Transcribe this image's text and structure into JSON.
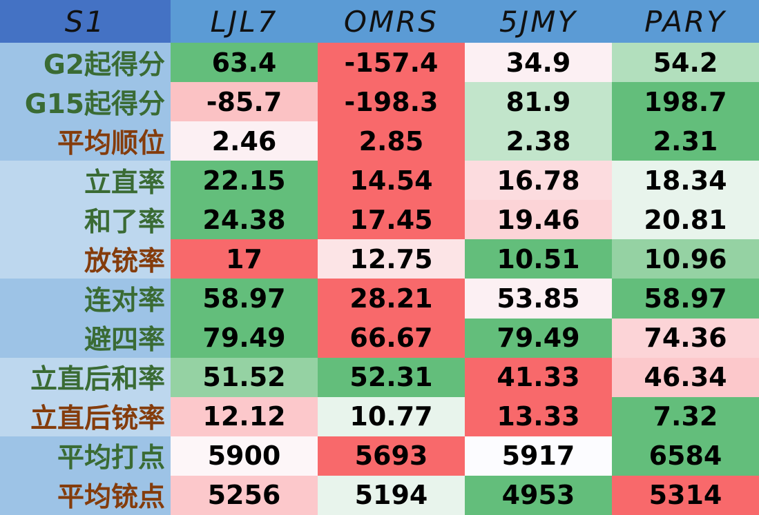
{
  "header": {
    "corner": "S1",
    "columns": [
      "LJL7",
      "OMRS",
      "5JMY",
      "PARY"
    ]
  },
  "colors": {
    "header_bg": "#5b9bd5",
    "corner_bg": "#4472c4",
    "label_bg_a": "#9dc3e6",
    "label_bg_b": "#bdd7ee",
    "label_text_green": "#3a6b34",
    "label_text_brown": "#843c0c"
  },
  "rows": [
    {
      "label": "G2起得分",
      "label_color": "#3a6b34",
      "label_bg": "#9dc3e6",
      "values": [
        "63.4",
        "-157.4",
        "34.9",
        "54.2"
      ],
      "colors": [
        "#63be7b",
        "#f8696b",
        "#fcf0f3",
        "#b2dfbd"
      ]
    },
    {
      "label": "G15起得分",
      "label_color": "#3a6b34",
      "label_bg": "#9dc3e6",
      "values": [
        "-85.7",
        "-198.3",
        "81.9",
        "198.7"
      ],
      "colors": [
        "#fbc2c4",
        "#f8696b",
        "#c2e5cb",
        "#63be7b"
      ]
    },
    {
      "label": "平均顺位",
      "label_color": "#843c0c",
      "label_bg": "#9dc3e6",
      "values": [
        "2.46",
        "2.85",
        "2.38",
        "2.31"
      ],
      "colors": [
        "#fcf0f3",
        "#f8696b",
        "#c2e5cb",
        "#63be7b"
      ]
    },
    {
      "label": "立直率",
      "label_color": "#3a6b34",
      "label_bg": "#bdd7ee",
      "values": [
        "22.15",
        "14.54",
        "16.78",
        "18.34"
      ],
      "colors": [
        "#63be7b",
        "#f8696b",
        "#fcdcdf",
        "#e8f4ec"
      ]
    },
    {
      "label": "和了率",
      "label_color": "#3a6b34",
      "label_bg": "#bdd7ee",
      "values": [
        "24.38",
        "17.45",
        "19.46",
        "20.81"
      ],
      "colors": [
        "#63be7b",
        "#f8696b",
        "#fcd4d7",
        "#e8f4ec"
      ]
    },
    {
      "label": "放铳率",
      "label_color": "#843c0c",
      "label_bg": "#bdd7ee",
      "values": [
        "17",
        "12.75",
        "10.51",
        "10.96"
      ],
      "colors": [
        "#f8696b",
        "#fce4e6",
        "#63be7b",
        "#95d2a3"
      ]
    },
    {
      "label": "连对率",
      "label_color": "#3a6b34",
      "label_bg": "#9dc3e6",
      "values": [
        "58.97",
        "28.21",
        "53.85",
        "58.97"
      ],
      "colors": [
        "#63be7b",
        "#f8696b",
        "#fcf0f3",
        "#63be7b"
      ]
    },
    {
      "label": "避四率",
      "label_color": "#3a6b34",
      "label_bg": "#9dc3e6",
      "values": [
        "79.49",
        "66.67",
        "79.49",
        "74.36"
      ],
      "colors": [
        "#63be7b",
        "#f8696b",
        "#63be7b",
        "#fcd4d7"
      ]
    },
    {
      "label": "立直后和率",
      "label_color": "#3a6b34",
      "label_bg": "#bdd7ee",
      "values": [
        "51.52",
        "52.31",
        "41.33",
        "46.34"
      ],
      "colors": [
        "#95d2a3",
        "#63be7b",
        "#f8696b",
        "#fcc8cb"
      ]
    },
    {
      "label": "立直后铳率",
      "label_color": "#843c0c",
      "label_bg": "#bdd7ee",
      "values": [
        "12.12",
        "10.77",
        "13.33",
        "7.32"
      ],
      "colors": [
        "#fcc8cb",
        "#e8f4ec",
        "#f8696b",
        "#63be7b"
      ]
    },
    {
      "label": "平均打点",
      "label_color": "#3a6b34",
      "label_bg": "#9dc3e6",
      "values": [
        "5900",
        "5693",
        "5917",
        "6584"
      ],
      "colors": [
        "#fdf6f8",
        "#f8696b",
        "#fcfcff",
        "#63be7b"
      ]
    },
    {
      "label": "平均铳点",
      "label_color": "#843c0c",
      "label_bg": "#9dc3e6",
      "values": [
        "5256",
        "5194",
        "4953",
        "5314"
      ],
      "colors": [
        "#fcc8cb",
        "#e8f4ec",
        "#63be7b",
        "#f8696b"
      ]
    }
  ]
}
